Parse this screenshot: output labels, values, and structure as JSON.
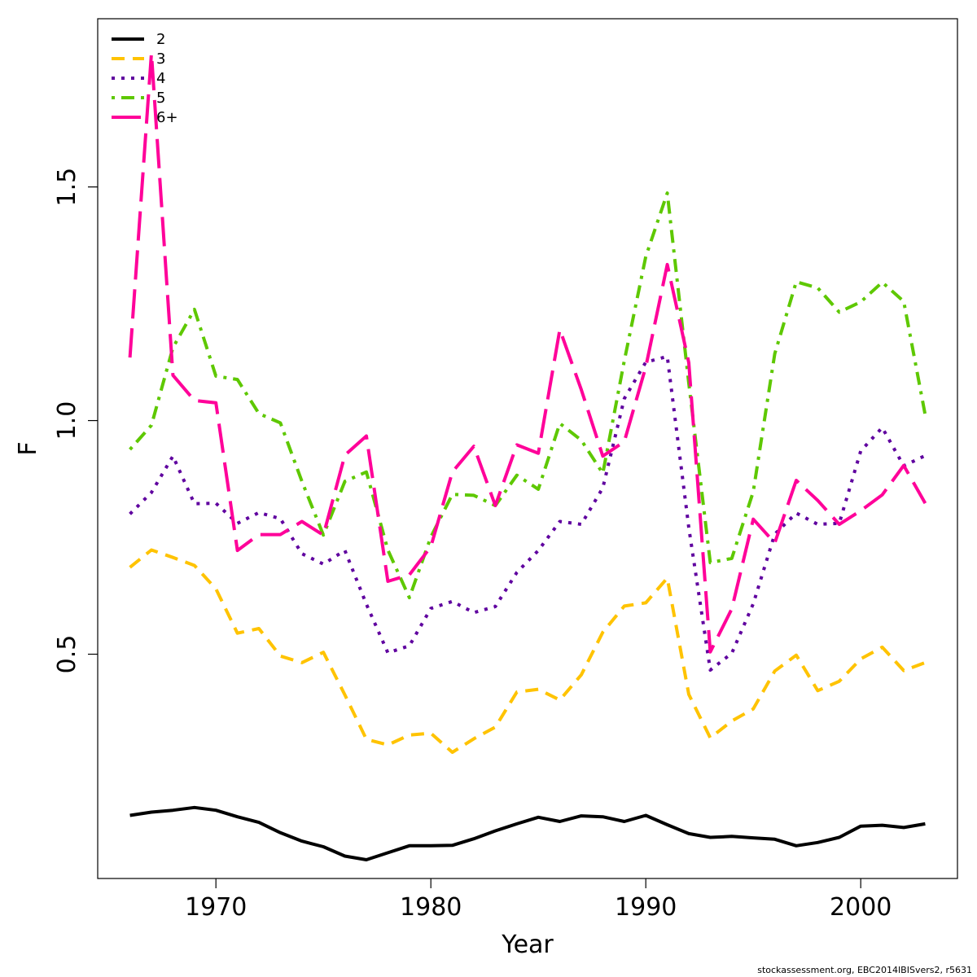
{
  "chart_data": {
    "type": "line",
    "title": "",
    "xlabel": "Year",
    "ylabel": "F",
    "xlim": [
      1964.5,
      2004.5
    ],
    "ylim": [
      0.02,
      1.86
    ],
    "x_ticks": [
      1970,
      1980,
      1990,
      2000
    ],
    "x_tick_labels": [
      "1970",
      "1980",
      "1990",
      "2000"
    ],
    "y_ticks": [
      0.5,
      1.0,
      1.5
    ],
    "y_tick_labels": [
      "0.5",
      "1.0",
      "1.5"
    ],
    "grid": false,
    "legend_position": "top-left",
    "x": [
      1966,
      1967,
      1968,
      1969,
      1970,
      1971,
      1972,
      1973,
      1974,
      1975,
      1976,
      1977,
      1978,
      1979,
      1980,
      1981,
      1982,
      1983,
      1984,
      1985,
      1986,
      1987,
      1988,
      1989,
      1990,
      1991,
      1992,
      1993,
      1994,
      1995,
      1996,
      1997,
      1998,
      1999,
      2000,
      2001,
      2002,
      2003
    ],
    "series": [
      {
        "name": "2",
        "color": "#000000",
        "dash": "solid",
        "values": [
          0.155,
          0.162,
          0.166,
          0.172,
          0.166,
          0.152,
          0.14,
          0.118,
          0.1,
          0.088,
          0.068,
          0.06,
          0.075,
          0.09,
          0.09,
          0.091,
          0.105,
          0.122,
          0.137,
          0.151,
          0.142,
          0.154,
          0.152,
          0.142,
          0.155,
          0.135,
          0.116,
          0.108,
          0.11,
          0.107,
          0.104,
          0.09,
          0.097,
          0.108,
          0.132,
          0.134,
          0.129,
          0.137
        ]
      },
      {
        "name": "3",
        "color": "#FFC300",
        "dash": "dashed",
        "values": [
          0.686,
          0.723,
          0.707,
          0.69,
          0.64,
          0.545,
          0.555,
          0.496,
          0.482,
          0.504,
          0.413,
          0.318,
          0.306,
          0.327,
          0.331,
          0.29,
          0.319,
          0.344,
          0.419,
          0.425,
          0.402,
          0.456,
          0.547,
          0.603,
          0.61,
          0.663,
          0.414,
          0.321,
          0.357,
          0.383,
          0.464,
          0.498,
          0.422,
          0.442,
          0.49,
          0.515,
          0.465,
          0.482
        ]
      },
      {
        "name": "4",
        "color": "#5F009F",
        "dash": "dotted",
        "values": [
          0.8,
          0.846,
          0.924,
          0.822,
          0.823,
          0.78,
          0.803,
          0.79,
          0.715,
          0.693,
          0.722,
          0.607,
          0.503,
          0.518,
          0.598,
          0.613,
          0.589,
          0.602,
          0.675,
          0.722,
          0.784,
          0.778,
          0.856,
          1.047,
          1.125,
          1.137,
          0.771,
          0.466,
          0.502,
          0.608,
          0.757,
          0.802,
          0.778,
          0.78,
          0.935,
          0.985,
          0.903,
          0.925
        ]
      },
      {
        "name": "5",
        "color": "#5EC800",
        "dash": "dashdot",
        "values": [
          0.938,
          0.99,
          1.156,
          1.238,
          1.095,
          1.088,
          1.015,
          0.995,
          0.87,
          0.755,
          0.87,
          0.89,
          0.723,
          0.621,
          0.751,
          0.842,
          0.84,
          0.818,
          0.883,
          0.853,
          0.994,
          0.958,
          0.887,
          1.128,
          1.351,
          1.487,
          1.08,
          0.696,
          0.705,
          0.848,
          1.143,
          1.297,
          1.284,
          1.232,
          1.254,
          1.296,
          1.255,
          1.012
        ]
      },
      {
        "name": "6+",
        "color": "#FF0099",
        "dash": "longdash",
        "values": [
          1.135,
          1.786,
          1.097,
          1.043,
          1.038,
          0.722,
          0.756,
          0.756,
          0.784,
          0.755,
          0.926,
          0.967,
          0.656,
          0.67,
          0.73,
          0.89,
          0.945,
          0.818,
          0.948,
          0.93,
          1.195,
          1.066,
          0.924,
          0.955,
          1.115,
          1.334,
          1.124,
          0.505,
          0.597,
          0.789,
          0.738,
          0.872,
          0.829,
          0.778,
          0.807,
          0.841,
          0.904,
          0.823
        ]
      }
    ]
  },
  "footer": "stockassessment.org, EBC2014IBISvers2, r5631"
}
